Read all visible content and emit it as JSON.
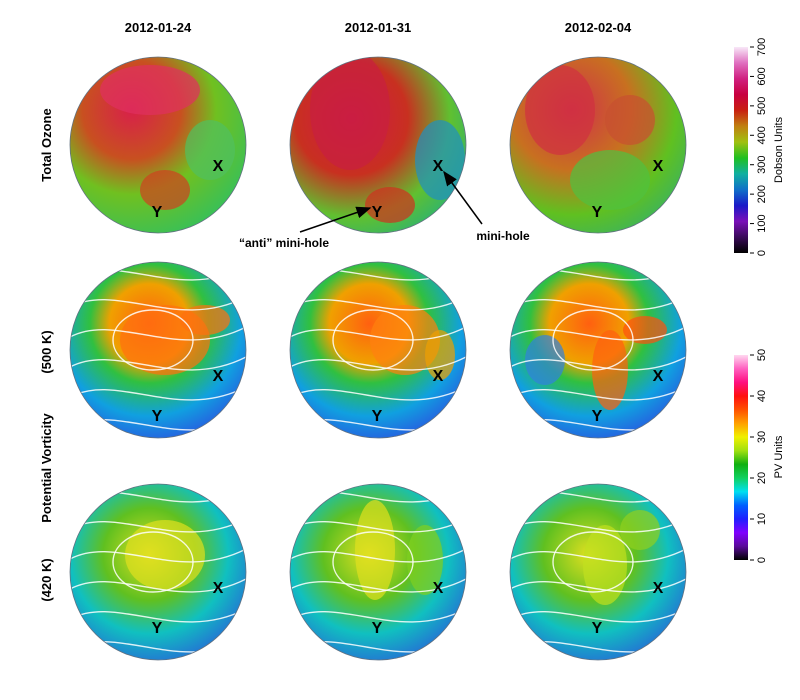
{
  "columns": [
    "2012-01-24",
    "2012-01-31",
    "2012-02-04"
  ],
  "row_labels": {
    "total_ozone": "Total Ozone",
    "pv_500": "(500 K)",
    "pv_title": "Potential Vorticity",
    "pv_420": "(420 K)"
  },
  "markers": {
    "x": "X",
    "y": "Y"
  },
  "annotations": {
    "anti_mini_hole": "“anti” mini-hole",
    "mini_hole": "mini-hole"
  },
  "colorbars": [
    {
      "label": "Dobson Units",
      "min": 0,
      "max": 700,
      "ticks": [
        "0",
        "100",
        "200",
        "300",
        "400",
        "500",
        "600",
        "700"
      ],
      "colors": [
        "#000000",
        "#3a0a5a",
        "#7a10b8",
        "#1a1ac8",
        "#1070c8",
        "#10b0a0",
        "#20c020",
        "#a0c010",
        "#c08010",
        "#c82010",
        "#c80040",
        "#d02080",
        "#e070c0",
        "#f8e8f8"
      ]
    },
    {
      "label": "PV Units",
      "min": 0,
      "max": 50,
      "ticks": [
        "0",
        "10",
        "20",
        "30",
        "40",
        "50"
      ],
      "colors": [
        "#000000",
        "#5a0a9a",
        "#8000ff",
        "#2020ff",
        "#0060ff",
        "#00e0f0",
        "#10d060",
        "#10b010",
        "#a0e010",
        "#f0f000",
        "#ffa000",
        "#ff5000",
        "#ff1010",
        "#ff1080",
        "#ff60c0",
        "#ffd8f0"
      ]
    }
  ]
}
